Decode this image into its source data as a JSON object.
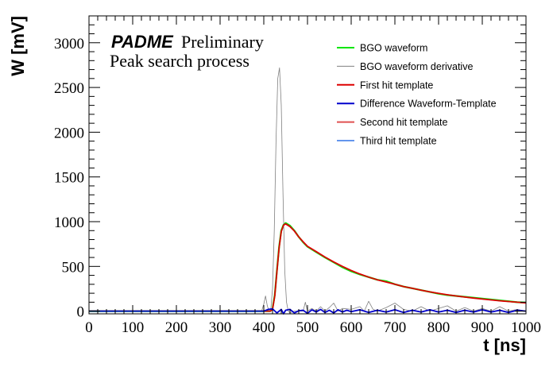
{
  "chart_data": {
    "type": "line",
    "brand": "PADME",
    "preliminary_label": "Preliminary",
    "annotation": "Peak search process",
    "xlabel": "t [ns]",
    "ylabel": "W [mV]",
    "xlim": [
      0,
      1000
    ],
    "ylim": [
      -30,
      3300
    ],
    "x_ticks": [
      0,
      100,
      200,
      300,
      400,
      500,
      600,
      700,
      800,
      900,
      1000
    ],
    "y_ticks": [
      0,
      500,
      1000,
      1500,
      2000,
      2500,
      3000
    ],
    "grid": false,
    "legend_position": "top-right",
    "series": [
      {
        "name": "BGO waveform",
        "color": "#00e600",
        "x": [
          0,
          100,
          200,
          300,
          400,
          415,
          420,
          425,
          430,
          435,
          440,
          445,
          450,
          460,
          470,
          480,
          490,
          500,
          520,
          540,
          560,
          580,
          600,
          620,
          640,
          660,
          680,
          700,
          720,
          740,
          760,
          780,
          800,
          820,
          840,
          860,
          880,
          900,
          920,
          940,
          960,
          980,
          1000
        ],
        "y": [
          0,
          0,
          0,
          0,
          0,
          0,
          30,
          180,
          450,
          720,
          900,
          965,
          985,
          955,
          900,
          830,
          770,
          720,
          660,
          600,
          545,
          490,
          445,
          410,
          380,
          350,
          335,
          300,
          275,
          255,
          235,
          215,
          195,
          180,
          170,
          160,
          150,
          140,
          130,
          120,
          110,
          100,
          95
        ]
      },
      {
        "name": "BGO waveform derivative",
        "color": "#808080",
        "x": [
          0,
          100,
          200,
          300,
          395,
          400,
          404,
          408,
          412,
          416,
          420,
          424,
          428,
          432,
          436,
          440,
          444,
          448,
          452,
          456,
          460,
          470,
          480,
          490,
          495,
          500,
          510,
          520,
          530,
          540,
          550,
          560,
          570,
          580,
          600,
          620,
          630,
          640,
          650,
          660,
          680,
          700,
          720,
          740,
          760,
          780,
          800,
          820,
          840,
          860,
          880,
          900,
          920,
          940,
          960,
          980,
          1000
        ],
        "y": [
          0,
          0,
          0,
          0,
          0,
          80,
          170,
          60,
          0,
          20,
          250,
          900,
          1900,
          2600,
          2720,
          2300,
          1300,
          450,
          100,
          0,
          -20,
          0,
          0,
          0,
          100,
          0,
          30,
          0,
          50,
          0,
          40,
          90,
          0,
          30,
          20,
          50,
          0,
          110,
          20,
          0,
          40,
          90,
          20,
          0,
          50,
          0,
          30,
          60,
          0,
          40,
          0,
          30,
          0,
          50,
          0,
          20,
          0
        ]
      },
      {
        "name": "First hit template",
        "color": "#dd0000",
        "x": [
          0,
          100,
          200,
          300,
          400,
          415,
          420,
          425,
          430,
          435,
          440,
          445,
          450,
          460,
          470,
          480,
          490,
          500,
          520,
          540,
          560,
          580,
          600,
          620,
          640,
          660,
          680,
          700,
          720,
          740,
          760,
          780,
          800,
          820,
          840,
          860,
          880,
          900,
          920,
          940,
          960,
          980,
          1000
        ],
        "y": [
          0,
          0,
          0,
          0,
          0,
          0,
          20,
          170,
          440,
          710,
          890,
          960,
          975,
          945,
          895,
          830,
          775,
          725,
          665,
          605,
          550,
          500,
          455,
          415,
          380,
          350,
          325,
          300,
          275,
          255,
          235,
          215,
          198,
          183,
          170,
          157,
          146,
          135,
          125,
          116,
          108,
          100,
          92
        ]
      },
      {
        "name": "Difference Waveform-Template",
        "color": "#0000cc",
        "x": [
          0,
          100,
          200,
          300,
          400,
          410,
          420,
          430,
          440,
          445,
          450,
          460,
          470,
          480,
          490,
          500,
          510,
          520,
          530,
          540,
          550,
          560,
          570,
          580,
          590,
          600,
          620,
          640,
          660,
          680,
          700,
          720,
          740,
          760,
          780,
          800,
          820,
          840,
          860,
          880,
          900,
          920,
          940,
          960,
          980,
          1000
        ],
        "y": [
          0,
          0,
          0,
          0,
          0,
          20,
          25,
          -20,
          20,
          -30,
          10,
          20,
          -20,
          5,
          10,
          -25,
          15,
          -10,
          20,
          -15,
          10,
          -20,
          15,
          -10,
          10,
          -5,
          15,
          -15,
          10,
          -10,
          15,
          -15,
          10,
          -10,
          15,
          -10,
          10,
          -15,
          10,
          -10,
          15,
          -10,
          10,
          -15,
          10,
          0
        ]
      },
      {
        "name": "Second hit template",
        "color": "#e05050",
        "x": [],
        "y": []
      },
      {
        "name": "Third hit template",
        "color": "#6495ed",
        "x": [],
        "y": []
      }
    ]
  }
}
